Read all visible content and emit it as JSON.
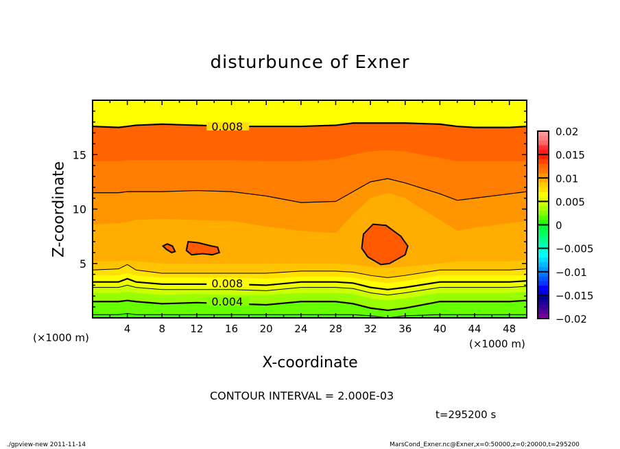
{
  "chart_data": {
    "type": "heatmap",
    "subtype": "filled-contour",
    "title": "disturbunce of Exner",
    "xlabel": "X-coordinate",
    "ylabel": "Z-coordinate",
    "x_unit": "(×1000 m)",
    "y_unit": "(×1000 m)",
    "xlim": [
      0,
      50
    ],
    "ylim": [
      0,
      20
    ],
    "x_ticks": [
      4,
      8,
      12,
      16,
      20,
      24,
      28,
      32,
      36,
      40,
      44,
      48
    ],
    "y_ticks": [
      5,
      10,
      15
    ],
    "colorbar": {
      "range": [
        -0.02,
        0.02
      ],
      "tick_labels": [
        "0.02",
        "0.015",
        "0.01",
        "0.005",
        "0",
        "-0.005",
        "-0.01",
        "-0.015",
        "-0.02"
      ],
      "tick_values": [
        0.02,
        0.015,
        0.01,
        0.005,
        0,
        -0.005,
        -0.01,
        -0.015,
        -0.02
      ],
      "colors_top_to_bottom": [
        "#ff9999",
        "#ff8080",
        "#ff6666",
        "#ff3333",
        "#ff1a1a",
        "#ff2200",
        "#ff4400",
        "#ff6600",
        "#ff7700",
        "#ff9900",
        "#ffb000",
        "#ffcc00",
        "#ffe000",
        "#ffff00",
        "#e6ff00",
        "#ccff00",
        "#aaff00",
        "#88ff00",
        "#55ff00",
        "#22ff00",
        "#00ff33",
        "#00ff55",
        "#00ff77",
        "#00ff99",
        "#00ffbb",
        "#00ffdd",
        "#00ffff",
        "#00ddff",
        "#00bbff",
        "#0099ff",
        "#0077ff",
        "#0055ff",
        "#0033ff",
        "#0000ff",
        "#0000dd",
        "#000099",
        "#1a0099",
        "#330099",
        "#550099",
        "#770099"
      ]
    },
    "fill_bands": [
      {
        "label": "0.000-0.002",
        "color": "#33ff00"
      },
      {
        "label": "0.002-0.004",
        "color": "#66ff00"
      },
      {
        "label": "0.004-0.005",
        "color": "#99ff00"
      },
      {
        "label": "0.005-0.006",
        "color": "#ccff00"
      },
      {
        "label": "0.006-0.007",
        "color": "#eeff00"
      },
      {
        "label": "0.007-0.008",
        "color": "#ffff00"
      },
      {
        "label": "0.008-0.009",
        "color": "#ffe000"
      },
      {
        "label": "0.009-0.010",
        "color": "#ffc400"
      },
      {
        "label": "0.010-0.011",
        "color": "#ffad00"
      },
      {
        "label": "0.011-0.012",
        "color": "#ff9500"
      },
      {
        "label": "0.012-0.013",
        "color": "#ff7d00"
      },
      {
        "label": "0.013-0.014",
        "color": "#ff6400"
      }
    ],
    "contour_interval": 0.002,
    "contour_labels": [
      {
        "text": "0.008",
        "x": 15.5,
        "z": 17.6
      },
      {
        "text": "0.008",
        "x": 15.5,
        "z": 3.2
      },
      {
        "text": "0.004",
        "x": 15.5,
        "z": 1.5
      }
    ],
    "profile_z_by_x": {
      "x": [
        0,
        3,
        4,
        5,
        8,
        12,
        16,
        20,
        24,
        28,
        30,
        32,
        34,
        36,
        40,
        42,
        44,
        48,
        50
      ],
      "band_tops_z": {
        "0.002": [
          0.3,
          0.3,
          0.4,
          0.3,
          0.3,
          0.3,
          0.3,
          0.3,
          0.3,
          0.3,
          0.3,
          0.2,
          0.0,
          0.2,
          0.3,
          0.3,
          0.3,
          0.3,
          0.3
        ],
        "0.004": [
          1.5,
          1.5,
          1.6,
          1.5,
          1.3,
          1.4,
          1.3,
          1.2,
          1.5,
          1.5,
          1.3,
          0.9,
          0.7,
          0.9,
          1.5,
          1.5,
          1.5,
          1.5,
          1.6
        ],
        "0.005": [
          2.3,
          2.3,
          2.4,
          2.3,
          2.1,
          2.2,
          2.1,
          2.1,
          2.3,
          2.3,
          2.2,
          1.8,
          1.6,
          1.8,
          2.3,
          2.3,
          2.3,
          2.3,
          2.4
        ],
        "0.006": [
          2.8,
          2.8,
          3.0,
          2.8,
          2.6,
          2.6,
          2.6,
          2.5,
          2.8,
          2.8,
          2.7,
          2.3,
          2.1,
          2.3,
          2.8,
          2.8,
          2.8,
          2.8,
          2.9
        ],
        "0.008": [
          3.3,
          3.3,
          3.6,
          3.3,
          3.1,
          3.1,
          3.1,
          3.0,
          3.3,
          3.3,
          3.2,
          2.8,
          2.6,
          2.8,
          3.3,
          3.3,
          3.3,
          3.3,
          3.4
        ],
        "0.009": [
          3.9,
          3.9,
          4.1,
          3.9,
          3.7,
          3.7,
          3.7,
          3.6,
          3.8,
          3.8,
          3.7,
          3.4,
          3.2,
          3.4,
          3.9,
          3.9,
          3.9,
          3.9,
          3.9
        ],
        "0.010": [
          4.4,
          4.5,
          4.9,
          4.4,
          4.1,
          4.1,
          4.1,
          4.1,
          4.3,
          4.3,
          4.2,
          3.9,
          3.7,
          3.9,
          4.4,
          4.4,
          4.4,
          4.4,
          4.5
        ],
        "0.011": [
          5.2,
          5.2,
          5.3,
          5.2,
          5.0,
          5.0,
          5.0,
          5.0,
          5.0,
          5.0,
          4.9,
          4.7,
          4.6,
          4.7,
          5.0,
          5.2,
          5.2,
          5.2,
          5.3
        ],
        "0.012": [
          8.6,
          8.7,
          8.8,
          9.0,
          9.1,
          9.0,
          8.9,
          8.4,
          8.0,
          7.8,
          9.5,
          11.0,
          11.5,
          11.0,
          9.0,
          8.0,
          8.3,
          8.7,
          8.9
        ],
        "0.013": [
          11.5,
          11.5,
          11.6,
          11.6,
          11.6,
          11.7,
          11.6,
          11.2,
          10.6,
          10.7,
          11.6,
          12.5,
          12.8,
          12.4,
          11.4,
          10.8,
          11.0,
          11.4,
          11.6
        ],
        "0.014": [
          14.4,
          14.4,
          14.5,
          14.5,
          14.5,
          14.5,
          14.5,
          14.4,
          14.4,
          14.6,
          15.0,
          15.3,
          15.4,
          15.3,
          14.7,
          14.4,
          14.4,
          14.4,
          14.4
        ],
        "0.015": [
          17.6,
          17.5,
          17.6,
          17.7,
          17.8,
          17.7,
          17.6,
          17.6,
          17.6,
          17.7,
          17.9,
          17.9,
          17.9,
          17.9,
          17.8,
          17.6,
          17.5,
          17.5,
          17.6
        ]
      }
    },
    "maxima_contours": [
      {
        "level": 0.014,
        "center_x": 33.0,
        "center_z": 6.9
      },
      {
        "level": 0.014,
        "center_x": 12.3,
        "center_z": 6.3
      },
      {
        "level": 0.014,
        "center_x": 8.7,
        "center_z": 6.6
      }
    ]
  },
  "annotations": {
    "contour_interval": "CONTOUR INTERVAL = 2.000E-03",
    "time": "t=295200 s",
    "footer_left": "./gpview-new   2011-11-14",
    "footer_right": "MarsCond_Exner.nc@Exner,x=0:50000,z=0:20000,t=295200"
  }
}
